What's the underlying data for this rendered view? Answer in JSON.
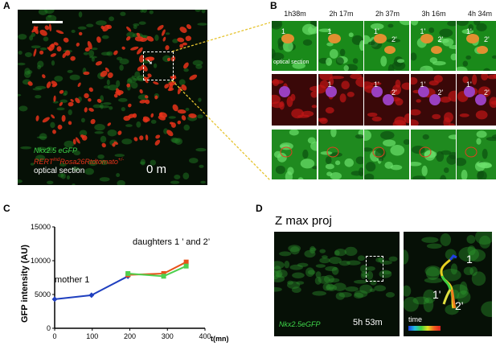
{
  "panel_letters": {
    "a": "A",
    "b": "B",
    "c": "C",
    "d": "D"
  },
  "panel_a": {
    "caption_line1": "Nkx2.5 eGFP",
    "caption_line2_prefix": "RERT",
    "caption_line2_sup": "(sup)",
    "caption_line2_rest": "Rosa26Rtdtomato",
    "caption_line2_sup2": "+/-",
    "caption_line3": "optical section",
    "time": "0 m",
    "colors": {
      "green": "#3fd84a",
      "red": "#e8321a",
      "white": "#ffffff"
    }
  },
  "panel_b": {
    "timepoints": [
      "1h38m",
      "2h 17m",
      "2h 37m",
      "3h 16m",
      "4h 34m"
    ],
    "tile_label": "optical section",
    "row1_labels": [
      [
        "1"
      ],
      [
        "1"
      ],
      [
        "1'",
        "2'"
      ],
      [
        "1'",
        "2'"
      ],
      [
        "1'",
        "2'"
      ]
    ],
    "row2_labels": [
      [],
      [
        "1"
      ],
      [
        "1'",
        "2'"
      ],
      [
        "1'",
        "2'"
      ],
      [
        "1'",
        "2'"
      ]
    ]
  },
  "panel_c": {
    "annotation_mother": "mother 1",
    "annotation_daughters": "daughters 1 ’ and 2’"
  },
  "chart_data": {
    "type": "line",
    "ylabel": "GFP intensity (AU)",
    "xlabel": "t(mn)",
    "xlim": [
      0,
      400
    ],
    "ylim": [
      0,
      15000
    ],
    "xticks": [
      "0",
      "100",
      "200",
      "300",
      "400"
    ],
    "yticks": [
      "0",
      "5000",
      "10000",
      "15000"
    ],
    "series": [
      {
        "color": "#1f3fbf",
        "x": [
          0,
          98,
          195
        ],
        "y": [
          4300,
          4900,
          7700
        ]
      },
      {
        "color": "#e8521a",
        "x": [
          195,
          290,
          350
        ],
        "y": [
          7900,
          8100,
          9800
        ]
      },
      {
        "color": "#4fd04f",
        "x": [
          195,
          290,
          350
        ],
        "y": [
          8100,
          7700,
          9200
        ]
      }
    ]
  },
  "panel_d": {
    "title": "Z max proj",
    "caption": "Nkx2.5eGFP",
    "time": "5h 53m",
    "labels": [
      "1",
      "1'",
      "2'"
    ],
    "colorbar_label": "time"
  }
}
